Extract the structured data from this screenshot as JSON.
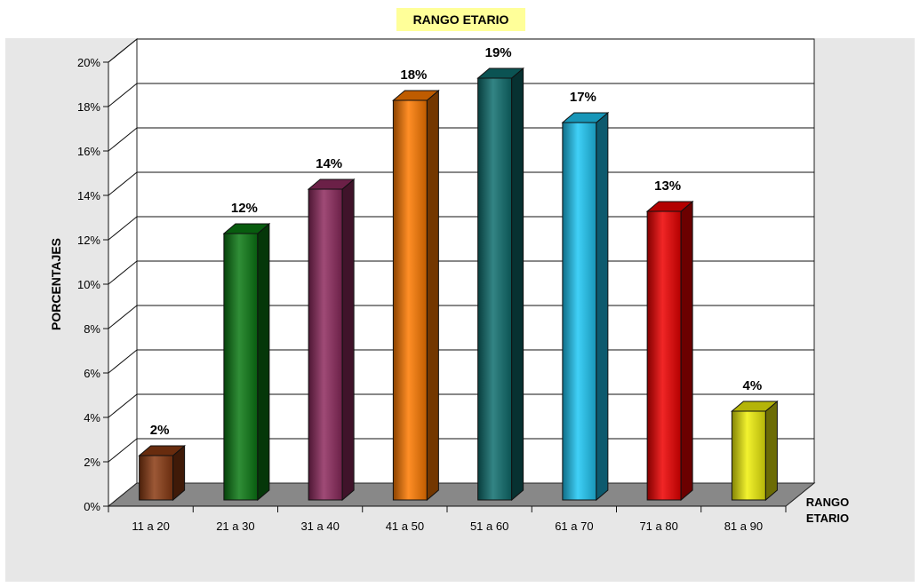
{
  "chart_data": {
    "type": "bar",
    "title": "RANGO ETARIO",
    "ylabel": "PORCENTAJES",
    "xlabel": "RANGO ETARIO",
    "categories": [
      "11 a 20",
      "21 a 30",
      "31 a 40",
      "41 a 50",
      "51 a 60",
      "61 a 70",
      "71 a 80",
      "81 a 90"
    ],
    "values": [
      2,
      12,
      14,
      18,
      19,
      17,
      13,
      4
    ],
    "data_labels": [
      "2%",
      "12%",
      "14%",
      "18%",
      "19%",
      "17%",
      "13%",
      "4%"
    ],
    "y_ticks": [
      "0%",
      "2%",
      "4%",
      "6%",
      "8%",
      "10%",
      "12%",
      "14%",
      "16%",
      "18%",
      "20%"
    ],
    "ylim": [
      0,
      20
    ],
    "grid": true,
    "style": "3d-column",
    "bar_colors": [
      "#8b3a12",
      "#0b7a14",
      "#8e2a5e",
      "#ff7a00",
      "#0f6e6e",
      "#1ec8f5",
      "#ee0000",
      "#f0f00a"
    ],
    "background_color": "#e7e7e7",
    "title_highlight": "#ffff99"
  }
}
